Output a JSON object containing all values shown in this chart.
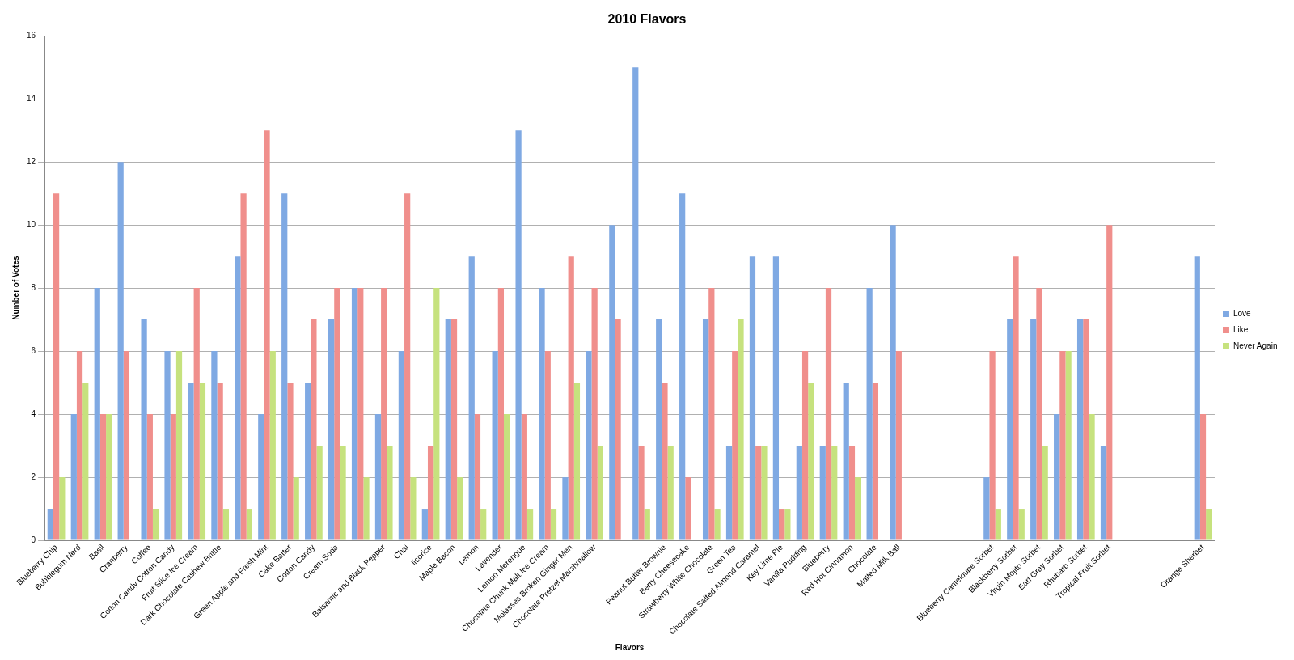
{
  "chart_data": {
    "type": "bar",
    "title": "2010 Flavors",
    "xlabel": "Flavors",
    "ylabel": "Number of Votes",
    "categories": [
      "Blueberry Chip",
      "Bubblegum Nerd",
      "Basil",
      "Cranberry",
      "Coffee",
      "Cotton Candy Cotton Candy",
      "Fruit Slice Ice Cream",
      "Dark Chocolate Cashew Brittle",
      null,
      "Green Apple and Fresh Mint",
      "Cake Batter",
      "Cotton Candy",
      "Cream Soda",
      null,
      "Balsamic and Black Pepper",
      "Chai",
      "licorice",
      "Maple Bacon",
      "Lemon",
      "Lavender",
      "Lemon Merengue",
      "Chocolate Chunk Malt Ice Cream",
      "Molasses Broken Ginger Men",
      "Chocolate Pretzel Marshmallow",
      null,
      null,
      "Peanut Butter Brownie",
      "Berry Cheesecake",
      "Strawberry White Chocolate",
      "Green Tea",
      "Chocolate Salted Almond Caramel",
      "Key Lime Pie",
      "Vanilla Pudding",
      "Blueberry",
      "Red Hot Cinnamon",
      "Chocolate",
      "Malted Milk Ball",
      null,
      null,
      null,
      "Blueberry Canteloupe Sorbet",
      "Blackberry Sorbet",
      "Virgin Mojito Sorbet",
      "Earl Gray Sorbet",
      "Rhubarb Sorbet",
      "Tropical Fruit Sorbet",
      null,
      null,
      null,
      "Orange Sherbet"
    ],
    "series": [
      {
        "name": "Love",
        "color": "#7fa9e3",
        "values": [
          1,
          4,
          8,
          12,
          7,
          6,
          5,
          6,
          9,
          4,
          11,
          5,
          7,
          8,
          4,
          6,
          1,
          7,
          9,
          6,
          13,
          8,
          2,
          6,
          10,
          15,
          7,
          11,
          7,
          3,
          9,
          9,
          3,
          3,
          5,
          8,
          10,
          null,
          null,
          null,
          2,
          7,
          7,
          4,
          7,
          3,
          null,
          null,
          null,
          9
        ]
      },
      {
        "name": "Like",
        "color": "#f08f8c",
        "values": [
          11,
          6,
          4,
          6,
          4,
          4,
          8,
          5,
          11,
          13,
          5,
          7,
          8,
          8,
          8,
          11,
          3,
          7,
          4,
          8,
          4,
          6,
          9,
          8,
          7,
          3,
          5,
          2,
          8,
          6,
          3,
          1,
          6,
          8,
          3,
          5,
          6,
          null,
          null,
          null,
          6,
          9,
          8,
          6,
          7,
          10,
          null,
          null,
          null,
          4
        ]
      },
      {
        "name": "Never Again",
        "color": "#c6e27e",
        "values": [
          2,
          5,
          4,
          null,
          1,
          6,
          5,
          1,
          1,
          6,
          2,
          3,
          3,
          2,
          3,
          2,
          8,
          2,
          1,
          4,
          1,
          1,
          5,
          3,
          null,
          1,
          3,
          null,
          1,
          7,
          3,
          1,
          5,
          3,
          2,
          null,
          null,
          null,
          null,
          null,
          1,
          1,
          3,
          6,
          4,
          null,
          null,
          null,
          null,
          1
        ]
      }
    ],
    "ylim": [
      0,
      16
    ],
    "yticks": [
      0,
      2,
      4,
      6,
      8,
      10,
      12,
      14,
      16
    ],
    "grid": "y",
    "legend": "right"
  }
}
